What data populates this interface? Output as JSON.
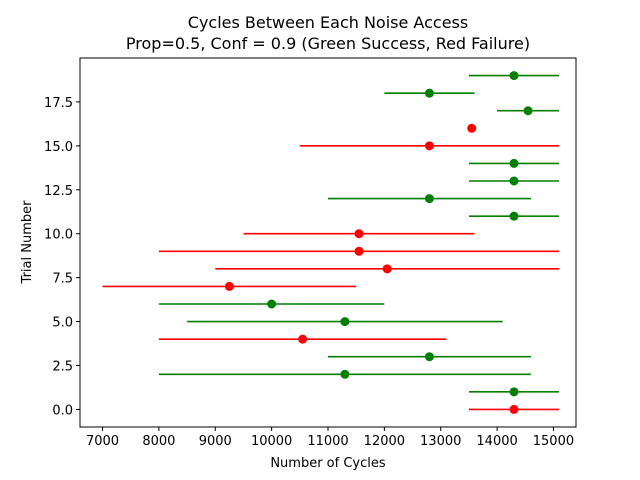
{
  "chart_data": {
    "type": "scatter",
    "title": "Cycles Between Each Noise Access",
    "subtitle": "Prop=0.5, Conf = 0.9 (Green Success, Red Failure)",
    "xlabel": "Number of Cycles",
    "ylabel": "Trial Number",
    "xlim": [
      6600,
      15400
    ],
    "ylim": [
      -1.0,
      20.0
    ],
    "x_ticks": [
      7000,
      8000,
      9000,
      10000,
      11000,
      12000,
      13000,
      14000,
      15000
    ],
    "y_ticks": [
      0.0,
      2.5,
      5.0,
      7.5,
      10.0,
      12.5,
      15.0,
      17.5
    ],
    "x_tick_labels": [
      "7000",
      "8000",
      "9000",
      "10000",
      "11000",
      "12000",
      "13000",
      "14000",
      "15000"
    ],
    "y_tick_labels": [
      "0.0",
      "2.5",
      "5.0",
      "7.5",
      "10.0",
      "12.5",
      "15.0",
      "17.5"
    ],
    "grid": false,
    "colors": {
      "success": "#008000",
      "failure": "#ff0000"
    },
    "points": [
      {
        "trial": 0,
        "x": 14300,
        "lo": 13500,
        "hi": 15100,
        "outcome": "failure"
      },
      {
        "trial": 1,
        "x": 14300,
        "lo": 13500,
        "hi": 15100,
        "outcome": "success"
      },
      {
        "trial": 2,
        "x": 11300,
        "lo": 8000,
        "hi": 14600,
        "outcome": "success"
      },
      {
        "trial": 3,
        "x": 12800,
        "lo": 11000,
        "hi": 14600,
        "outcome": "success"
      },
      {
        "trial": 4,
        "x": 10550,
        "lo": 8000,
        "hi": 13100,
        "outcome": "failure"
      },
      {
        "trial": 5,
        "x": 11300,
        "lo": 8500,
        "hi": 14100,
        "outcome": "success"
      },
      {
        "trial": 6,
        "x": 10000,
        "lo": 8000,
        "hi": 12000,
        "outcome": "success"
      },
      {
        "trial": 7,
        "x": 9250,
        "lo": 7000,
        "hi": 11500,
        "outcome": "failure"
      },
      {
        "trial": 8,
        "x": 12050,
        "lo": 9000,
        "hi": 15100,
        "outcome": "failure"
      },
      {
        "trial": 9,
        "x": 11550,
        "lo": 8000,
        "hi": 15100,
        "outcome": "failure"
      },
      {
        "trial": 10,
        "x": 11550,
        "lo": 9500,
        "hi": 13600,
        "outcome": "failure"
      },
      {
        "trial": 11,
        "x": 14300,
        "lo": 13500,
        "hi": 15100,
        "outcome": "success"
      },
      {
        "trial": 12,
        "x": 12800,
        "lo": 11000,
        "hi": 14600,
        "outcome": "success"
      },
      {
        "trial": 13,
        "x": 14300,
        "lo": 13500,
        "hi": 15100,
        "outcome": "success"
      },
      {
        "trial": 14,
        "x": 14300,
        "lo": 13500,
        "hi": 15100,
        "outcome": "success"
      },
      {
        "trial": 15,
        "x": 12800,
        "lo": 10500,
        "hi": 15100,
        "outcome": "failure"
      },
      {
        "trial": 16,
        "x": 13550,
        "lo": 13550,
        "hi": 13550,
        "outcome": "failure"
      },
      {
        "trial": 17,
        "x": 14550,
        "lo": 14000,
        "hi": 15100,
        "outcome": "success"
      },
      {
        "trial": 18,
        "x": 12800,
        "lo": 12000,
        "hi": 13600,
        "outcome": "success"
      },
      {
        "trial": 19,
        "x": 14300,
        "lo": 13500,
        "hi": 15100,
        "outcome": "success"
      }
    ]
  }
}
